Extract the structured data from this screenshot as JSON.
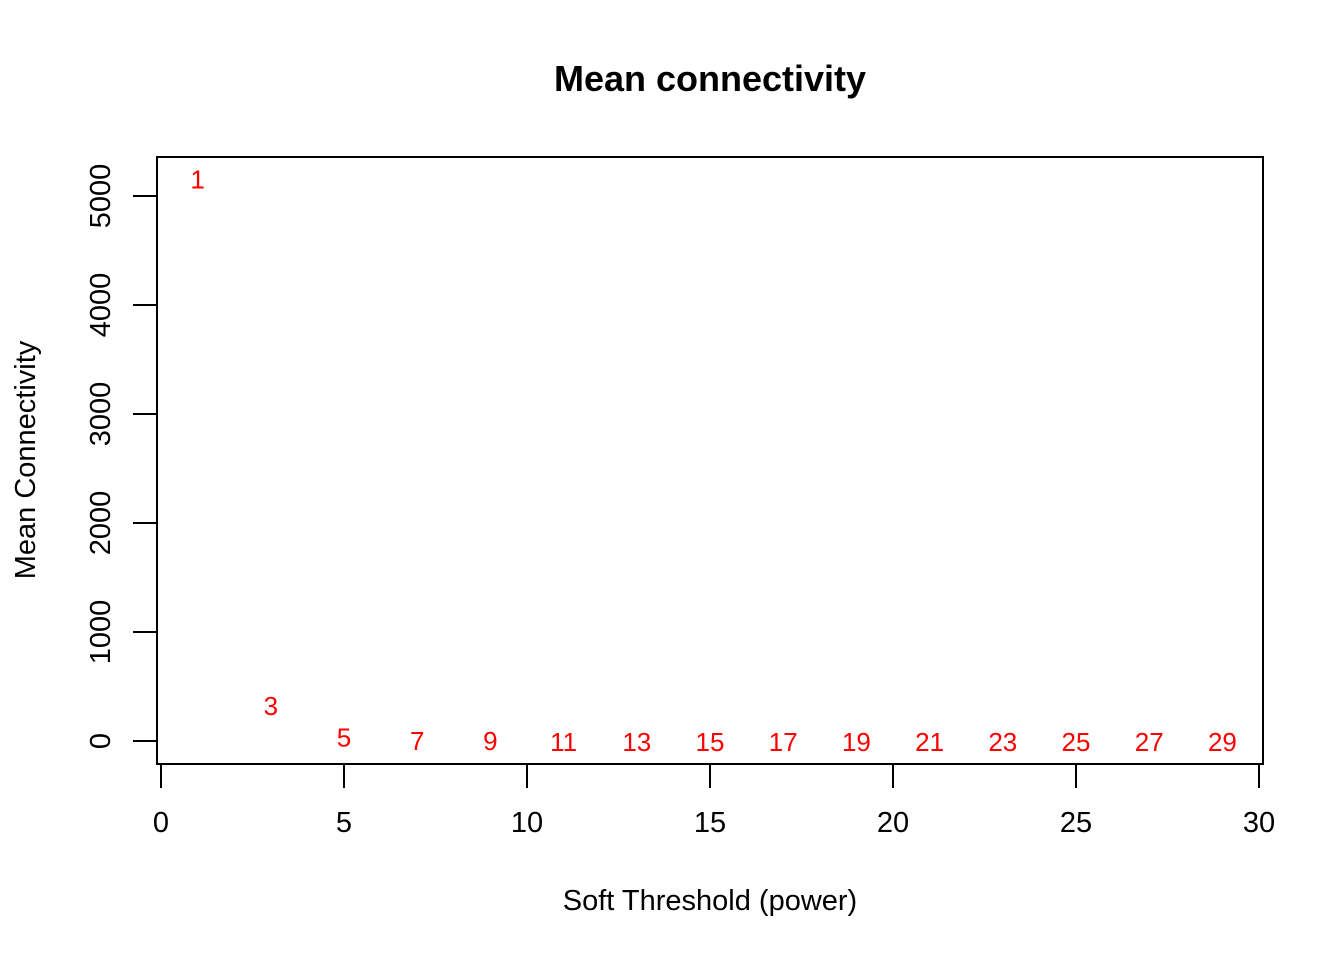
{
  "chart_data": {
    "type": "scatter",
    "title": "Mean connectivity",
    "xlabel": "Soft Threshold (power)",
    "ylabel": "Mean Connectivity",
    "xlim": [
      0,
      30
    ],
    "ylim": [
      -200,
      5400
    ],
    "x_ticks": [
      0,
      5,
      10,
      15,
      20,
      25,
      30
    ],
    "y_ticks": [
      0,
      1000,
      2000,
      3000,
      4000,
      5000
    ],
    "point_color": "#ff0000",
    "points": [
      {
        "x": 1,
        "y": 5150,
        "label": "1"
      },
      {
        "x": 3,
        "y": 320,
        "label": "3"
      },
      {
        "x": 5,
        "y": 30,
        "label": "5"
      },
      {
        "x": 7,
        "y": 0,
        "label": "7"
      },
      {
        "x": 9,
        "y": 0,
        "label": "9"
      },
      {
        "x": 11,
        "y": -10,
        "label": "11"
      },
      {
        "x": 13,
        "y": -10,
        "label": "13"
      },
      {
        "x": 15,
        "y": -10,
        "label": "15"
      },
      {
        "x": 17,
        "y": -10,
        "label": "17"
      },
      {
        "x": 19,
        "y": -10,
        "label": "19"
      },
      {
        "x": 21,
        "y": -10,
        "label": "21"
      },
      {
        "x": 23,
        "y": -10,
        "label": "23"
      },
      {
        "x": 25,
        "y": -10,
        "label": "25"
      },
      {
        "x": 27,
        "y": -10,
        "label": "27"
      },
      {
        "x": 29,
        "y": -10,
        "label": "29"
      }
    ],
    "grid": false,
    "legend": "none"
  }
}
